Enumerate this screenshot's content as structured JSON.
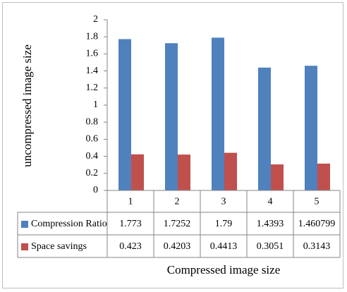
{
  "chart_data": {
    "type": "bar",
    "title": "",
    "xlabel": "Compressed image size",
    "ylabel": "uncompressed image size",
    "categories": [
      "1",
      "2",
      "3",
      "4",
      "5"
    ],
    "ylim": [
      0,
      2
    ],
    "yticks": [
      "0",
      "0.2",
      "0.4",
      "0.6",
      "0.8",
      "1",
      "1.2",
      "1.4",
      "1.6",
      "1.8",
      "2"
    ],
    "grid": false,
    "legend": "data-table",
    "series": [
      {
        "name": "Compression Ratio",
        "color": "#4f81bd",
        "values": [
          1.773,
          1.7252,
          1.79,
          1.4393,
          1.460799
        ],
        "labels": [
          "1.773",
          "1.7252",
          "1.79",
          "1.4393",
          "1.460799"
        ]
      },
      {
        "name": "Space savings",
        "color": "#c0504d",
        "values": [
          0.423,
          0.4203,
          0.4413,
          0.3051,
          0.3143
        ],
        "labels": [
          "0.423",
          "0.4203",
          "0.4413",
          "0.3051",
          "0.3143"
        ]
      }
    ]
  }
}
